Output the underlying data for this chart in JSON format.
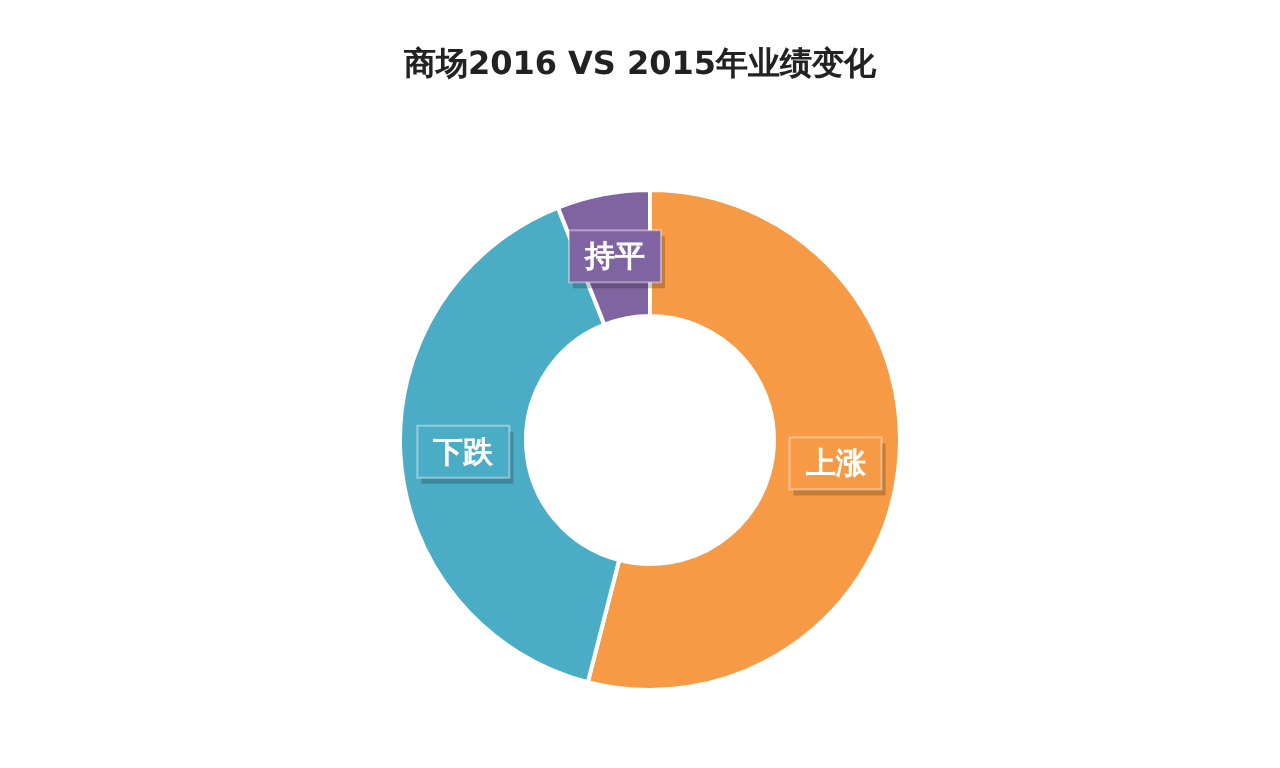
{
  "chart_data": {
    "type": "donut",
    "title": "商场2016 VS 2015年业绩变化",
    "categories": [
      "上涨",
      "下跌",
      "持平"
    ],
    "values": [
      54,
      40,
      6
    ],
    "colors": [
      "#f79a45",
      "#4bacc6",
      "#8064a2"
    ]
  }
}
